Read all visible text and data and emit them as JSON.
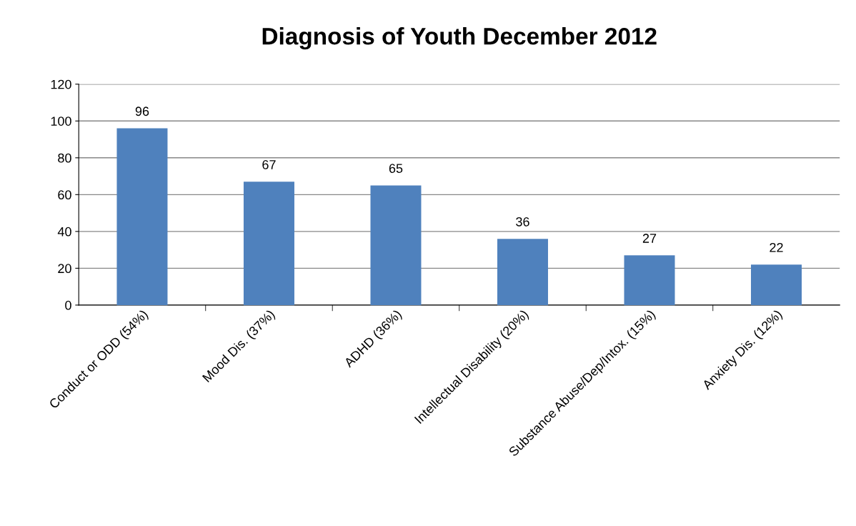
{
  "chart_data": {
    "type": "bar",
    "title": "Diagnosis of Youth December 2012",
    "categories": [
      "Conduct or ODD (54%)",
      "Mood Dis. (37%)",
      "ADHD (36%)",
      "Intellectual Disability (20%)",
      "Substance Abuse/Dep/Intox. (15%)",
      "Anxiety Dis. (12%)"
    ],
    "values": [
      96,
      67,
      65,
      36,
      27,
      22
    ],
    "color": "#4f81bd",
    "ylim": [
      0,
      120
    ],
    "yticks": [
      0,
      20,
      40,
      60,
      80,
      100,
      120
    ],
    "grid": "y",
    "data_labels": true,
    "legend": false
  }
}
